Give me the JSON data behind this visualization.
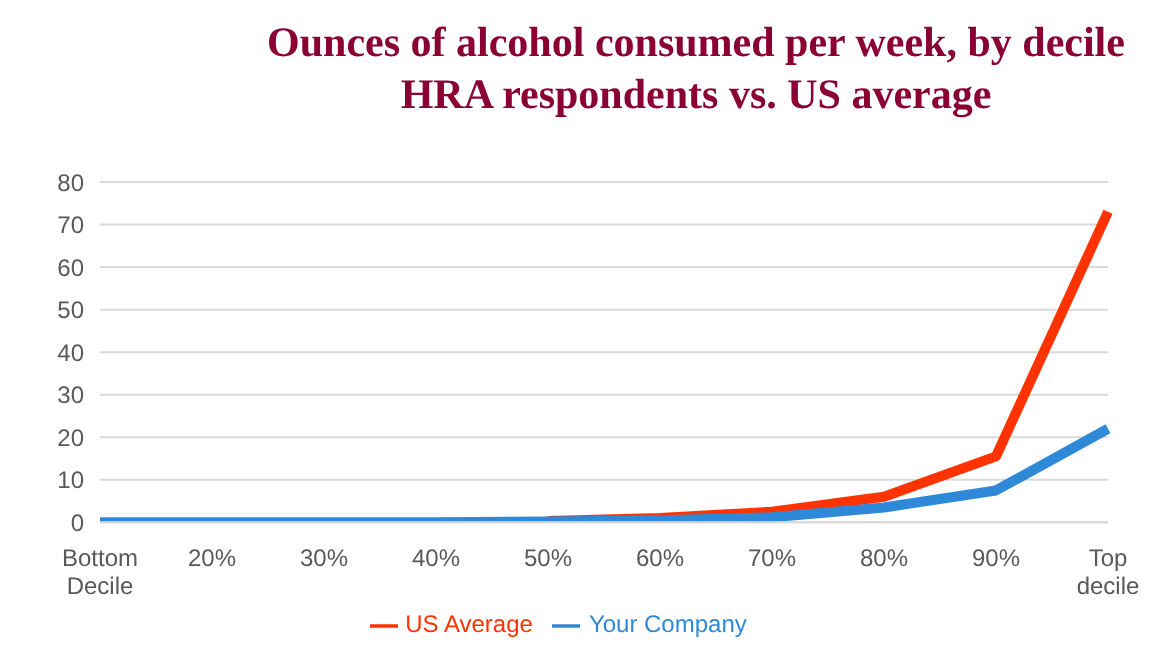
{
  "chart_data": {
    "type": "line",
    "title": "Ounces of alcohol consumed per week, by decile\nHRA respondents vs. US average",
    "categories": [
      "Bottom Decile",
      "20%",
      "30%",
      "40%",
      "50%",
      "60%",
      "70%",
      "80%",
      "90%",
      "Top decile"
    ],
    "series": [
      {
        "name": "US Average",
        "color": "#ff3300",
        "values": [
          null,
          null,
          null,
          null,
          0.3,
          1,
          2.5,
          6,
          15.5,
          73
        ]
      },
      {
        "name": "Your Company",
        "color": "#2e8ad8",
        "values": [
          0,
          0,
          0,
          0,
          0.2,
          0.5,
          1.2,
          3.5,
          7.5,
          22
        ]
      }
    ],
    "ylim": [
      0,
      80
    ],
    "yticks": [
      0,
      10,
      20,
      30,
      40,
      50,
      60,
      70,
      80
    ],
    "grid": "y",
    "legend": "bottom",
    "marker": "none"
  }
}
